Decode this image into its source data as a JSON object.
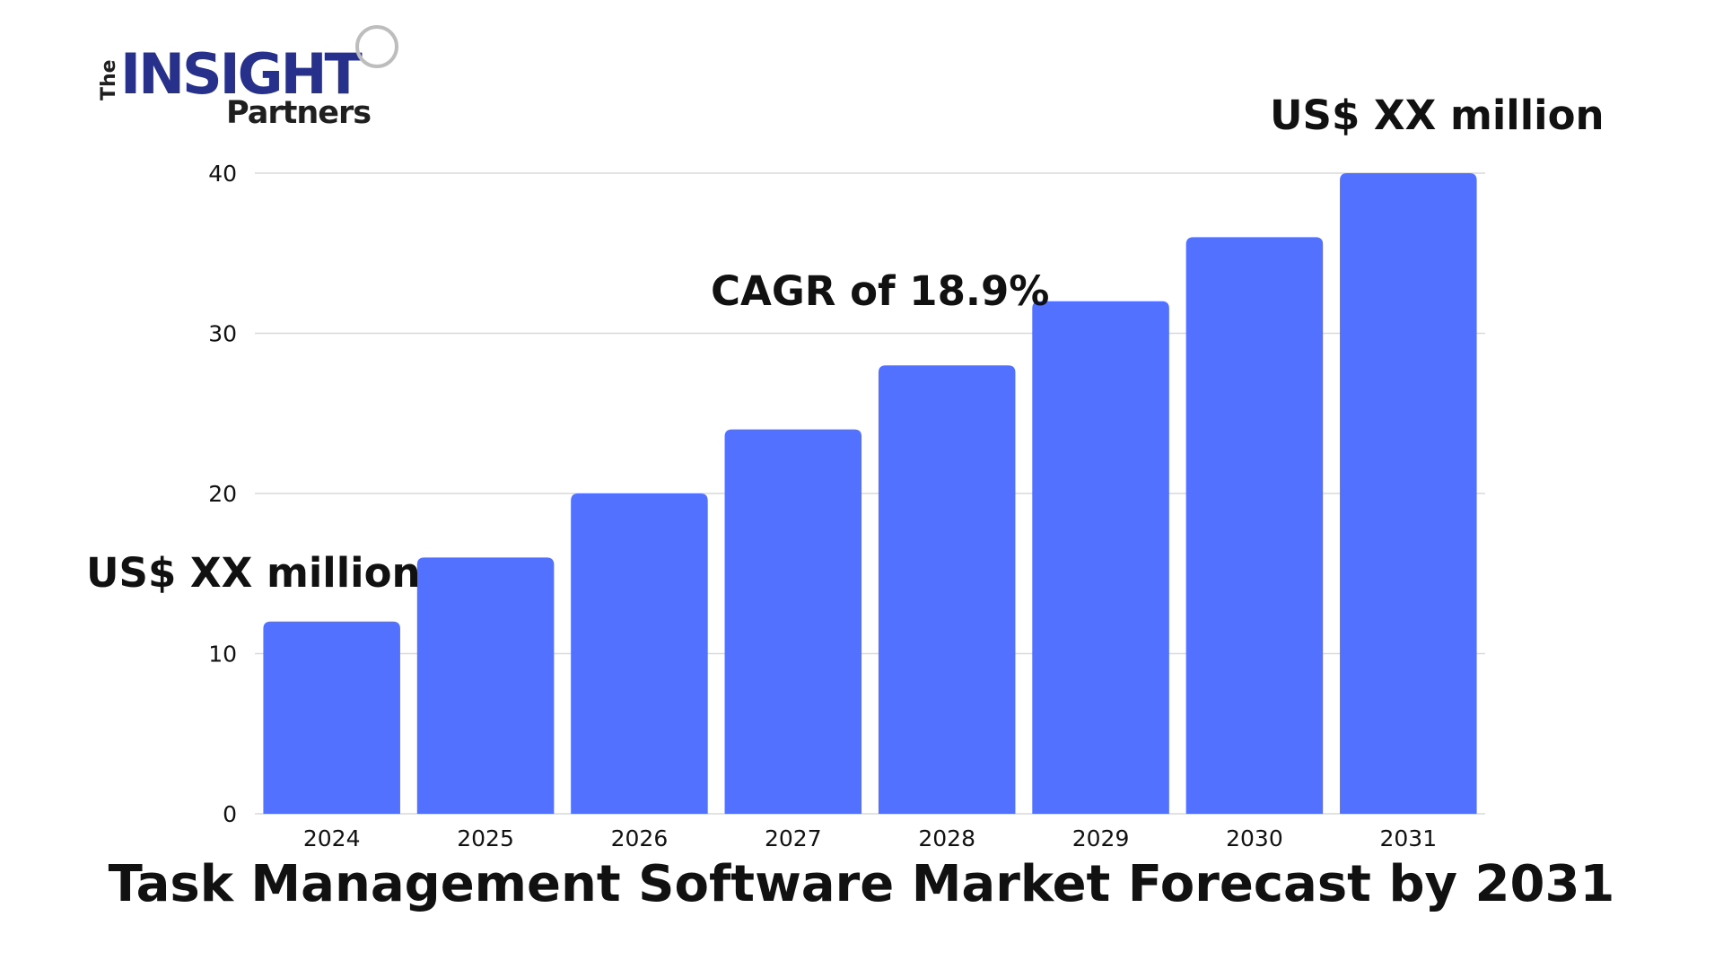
{
  "logo": {
    "line1_small": "The",
    "line1_big": "INSIGHT",
    "line2": "Partners",
    "colors": {
      "dark": "#1f1f1f",
      "accent": "#27318b",
      "ring": "#bdbdbd"
    }
  },
  "chart_data": {
    "type": "bar",
    "title": "Task Management Software Market Forecast by 2031",
    "xlabel": "",
    "ylabel": "",
    "categories": [
      "2024",
      "2025",
      "2026",
      "2027",
      "2028",
      "2029",
      "2030",
      "2031"
    ],
    "values": [
      12,
      16,
      20,
      24,
      28,
      32,
      36,
      40
    ],
    "ylim": [
      0,
      40
    ],
    "yticks": [
      0,
      10,
      20,
      30,
      40
    ],
    "grid": "horizontal",
    "legend": "none",
    "bar_color": "#5271ff",
    "annotations": [
      {
        "text": "US$ XX million",
        "anchor": "2024"
      },
      {
        "text": "CAGR of 18.9%",
        "anchor": "2028"
      },
      {
        "text": "US$ XX million",
        "anchor": "2031"
      }
    ]
  }
}
